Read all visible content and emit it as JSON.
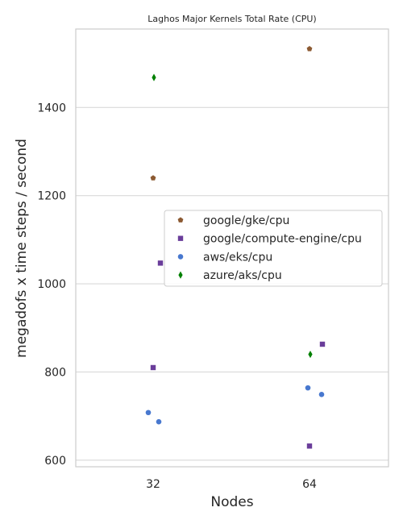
{
  "chart_data": {
    "type": "scatter",
    "title": "Laghos Major Kernels Total Rate (CPU)",
    "xlabel": "Nodes",
    "ylabel": "megadofs x time steps / second",
    "categories": [
      "32",
      "64"
    ],
    "ylim": [
      585,
      1578
    ],
    "yticks": [
      600,
      800,
      1000,
      1200,
      1400
    ],
    "grid": "horizontal",
    "legend_position": "center-right",
    "series": [
      {
        "name": "google/gke/cpu",
        "color": "#8c5a32",
        "marker": "pentagon",
        "points": [
          {
            "x": "32",
            "y": 1240
          },
          {
            "x": "64",
            "y": 1533
          }
        ]
      },
      {
        "name": "google/compute-engine/cpu",
        "color": "#6a3d9a",
        "marker": "square",
        "points": [
          {
            "x": "32",
            "y": 1047
          },
          {
            "x": "32",
            "y": 810
          },
          {
            "x": "64",
            "y": 863
          },
          {
            "x": "64",
            "y": 632
          }
        ]
      },
      {
        "name": "aws/eks/cpu",
        "color": "#4878cf",
        "marker": "circle",
        "points": [
          {
            "x": "32",
            "y": 708
          },
          {
            "x": "32",
            "y": 687
          },
          {
            "x": "64",
            "y": 764
          },
          {
            "x": "64",
            "y": 749
          }
        ]
      },
      {
        "name": "azure/aks/cpu",
        "color": "#008000",
        "marker": "diamond",
        "points": [
          {
            "x": "32",
            "y": 1468
          },
          {
            "x": "64",
            "y": 840
          }
        ]
      }
    ]
  }
}
